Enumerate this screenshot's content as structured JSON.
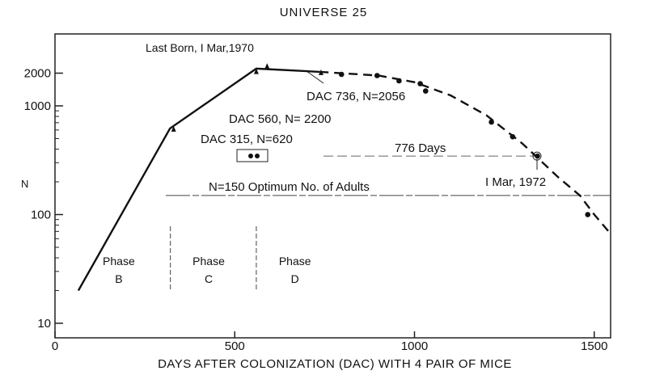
{
  "chart_data": {
    "type": "line",
    "title": "UNIVERSE 25",
    "xlabel": "DAYS AFTER COLONIZATION (DAC) WITH 4 PAIR OF MICE",
    "ylabel": "N",
    "xlim": [
      0,
      1560
    ],
    "ylim": [
      10,
      3500
    ],
    "yscale": "log",
    "grid": false,
    "x_ticks": [
      0,
      500,
      1000,
      1500
    ],
    "x_tick_labels": [
      "0",
      "500",
      "1000",
      "1500"
    ],
    "y_ticks": [
      10,
      100,
      1000,
      2000
    ],
    "y_tick_labels": [
      "10",
      "100",
      "1000",
      "2000"
    ],
    "series": [
      {
        "name": "growth (solid)",
        "style": "solid",
        "x": [
          65,
          320,
          560,
          736
        ],
        "y": [
          20,
          620,
          2200,
          2056
        ]
      },
      {
        "name": "decline (dashed)",
        "style": "dashed",
        "x": [
          736,
          900,
          1000,
          1100,
          1200,
          1300,
          1400,
          1460,
          1500,
          1540
        ],
        "y": [
          2056,
          1900,
          1650,
          1250,
          820,
          450,
          220,
          150,
          100,
          70
        ]
      },
      {
        "name": "observations",
        "style": "points",
        "x": [
          797,
          896,
          957,
          1016,
          1031,
          1214,
          1273,
          1342,
          1482
        ],
        "y": [
          1950,
          1900,
          1700,
          1600,
          1370,
          710,
          520,
          345,
          100
        ]
      },
      {
        "name": "census markers",
        "style": "triangles",
        "x": [
          330,
          560,
          590,
          740
        ],
        "y": [
          620,
          2100,
          2350,
          2056
        ]
      }
    ],
    "annotations": {
      "last_born": "Last Born, I Mar,1970",
      "dac736": "DAC 736, N=2056",
      "dac560": "DAC 560, N= 2200",
      "dac315": "DAC 315, N=620",
      "days776": "776 Days",
      "mar1972": "I Mar, 1972",
      "optimum": "N=150  Optimum No. of Adults"
    },
    "optimum_N": 150,
    "days_span": {
      "from": 566,
      "to": 1342,
      "y": 345
    },
    "phases": [
      {
        "word": "Phase",
        "letter": "B",
        "x": 200
      },
      {
        "word": "Phase",
        "letter": "C",
        "x": 450
      },
      {
        "word": "Phase",
        "letter": "D",
        "x": 690
      }
    ],
    "phase_boundaries": [
      330,
      560
    ]
  }
}
